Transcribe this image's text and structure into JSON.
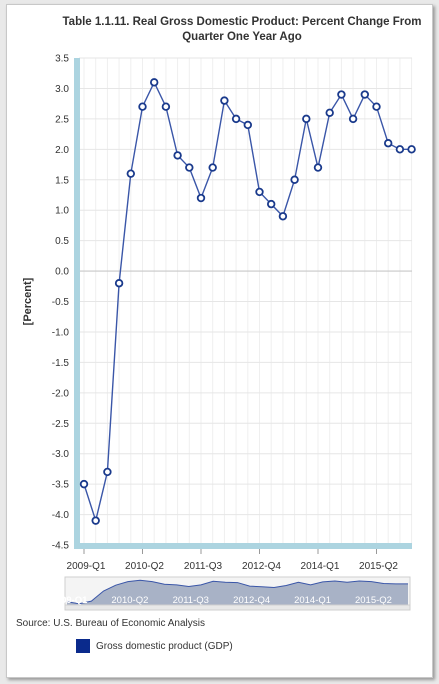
{
  "title": {
    "line1": "Table 1.1.11. Real Gross Domestic Product: Percent Change From",
    "line2": "Quarter One Year Ago"
  },
  "source": "Source: U.S. Bureau of Economic Analysis",
  "colors": {
    "series": "#3a56a8",
    "marker_fill": "#ffffff",
    "marker_stroke": "#1a3a8c",
    "axis_band": "#acd4e0",
    "legend": "#0a2a8c",
    "navigator_fill": "#9aa6bd"
  },
  "chart_data": {
    "type": "line",
    "title": "Table 1.1.11. Real Gross Domestic Product: Percent Change From Quarter One Year Ago",
    "ylabel": "[Percent]",
    "xlabel": "",
    "ylim": [
      -4.5,
      3.5
    ],
    "yticks": [
      "3.5",
      "3.0",
      "2.5",
      "2.0",
      "1.5",
      "1.0",
      "0.5",
      "0.0",
      "-0.5",
      "-1.0",
      "-1.5",
      "-2.0",
      "-2.5",
      "-3.0",
      "-3.5",
      "-4.0",
      "-4.5"
    ],
    "xtick_labels": [
      "2009-Q1",
      "2010-Q2",
      "2011-Q3",
      "2012-Q4",
      "2014-Q1",
      "2015-Q2"
    ],
    "grid": true,
    "legend_position": "bottom",
    "series": [
      {
        "name": "Gross domestic product (GDP)",
        "x": [
          "2009-Q1",
          "2009-Q2",
          "2009-Q3",
          "2009-Q4",
          "2010-Q1",
          "2010-Q2",
          "2010-Q3",
          "2010-Q4",
          "2011-Q1",
          "2011-Q2",
          "2011-Q3",
          "2011-Q4",
          "2012-Q1",
          "2012-Q2",
          "2012-Q3",
          "2012-Q4",
          "2013-Q1",
          "2013-Q2",
          "2013-Q3",
          "2013-Q4",
          "2014-Q1",
          "2014-Q2",
          "2014-Q3",
          "2014-Q4",
          "2015-Q1",
          "2015-Q2",
          "2015-Q3",
          "2015-Q4",
          "2016-Q1"
        ],
        "values": [
          -3.5,
          -4.1,
          -3.3,
          -0.2,
          1.6,
          2.7,
          3.1,
          2.7,
          1.9,
          1.7,
          1.2,
          1.7,
          2.8,
          2.5,
          2.4,
          1.3,
          1.1,
          0.9,
          1.5,
          2.5,
          1.7,
          2.6,
          2.9,
          2.5,
          2.9,
          2.7,
          2.1,
          2.0,
          2.0
        ]
      }
    ],
    "navigator_labels": [
      "2009-Q1",
      "2010-Q2",
      "2011-Q3",
      "2012-Q4",
      "2014-Q1",
      "2015-Q2"
    ]
  }
}
